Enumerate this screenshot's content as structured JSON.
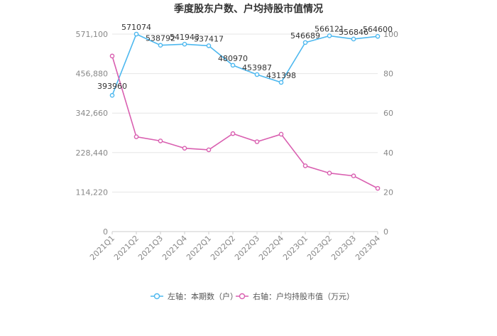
{
  "chart_data": {
    "type": "line",
    "title": "季度股东户数、户均持股市值情况",
    "categories": [
      "2021Q1",
      "2021Q2",
      "2021Q3",
      "2021Q4",
      "2022Q1",
      "2022Q2",
      "2022Q3",
      "2022Q4",
      "2023Q1",
      "2023Q2",
      "2023Q3",
      "2023Q4"
    ],
    "left_axis": {
      "ticks": [
        "0",
        "114,220",
        "228,440",
        "342,660",
        "456,880",
        "571,100"
      ],
      "ylim": [
        0,
        571100
      ]
    },
    "right_axis": {
      "ticks": [
        "0",
        "20",
        "40",
        "60",
        "80",
        "100"
      ],
      "ylim": [
        0,
        100
      ]
    },
    "grid": true,
    "legend_position": "bottom",
    "series": [
      {
        "name": "左轴：本期数（户）",
        "axis": "left",
        "color": "#4db8ef",
        "values": [
          393960,
          571074,
          538792,
          541943,
          537417,
          480970,
          453987,
          431398,
          546689,
          566121,
          556846,
          564600
        ],
        "labels": [
          "393960",
          "571074",
          "538792",
          "541943",
          "537417",
          "480970",
          "453987",
          "431398",
          "546689",
          "566121",
          "556846",
          "564600"
        ]
      },
      {
        "name": "右轴：户均持股市值（万元）",
        "axis": "right",
        "color": "#d95fb0",
        "values": [
          88.9,
          48.0,
          45.9,
          42.2,
          41.4,
          49.6,
          45.5,
          49.3,
          33.3,
          29.6,
          28.2,
          21.9
        ]
      }
    ]
  }
}
